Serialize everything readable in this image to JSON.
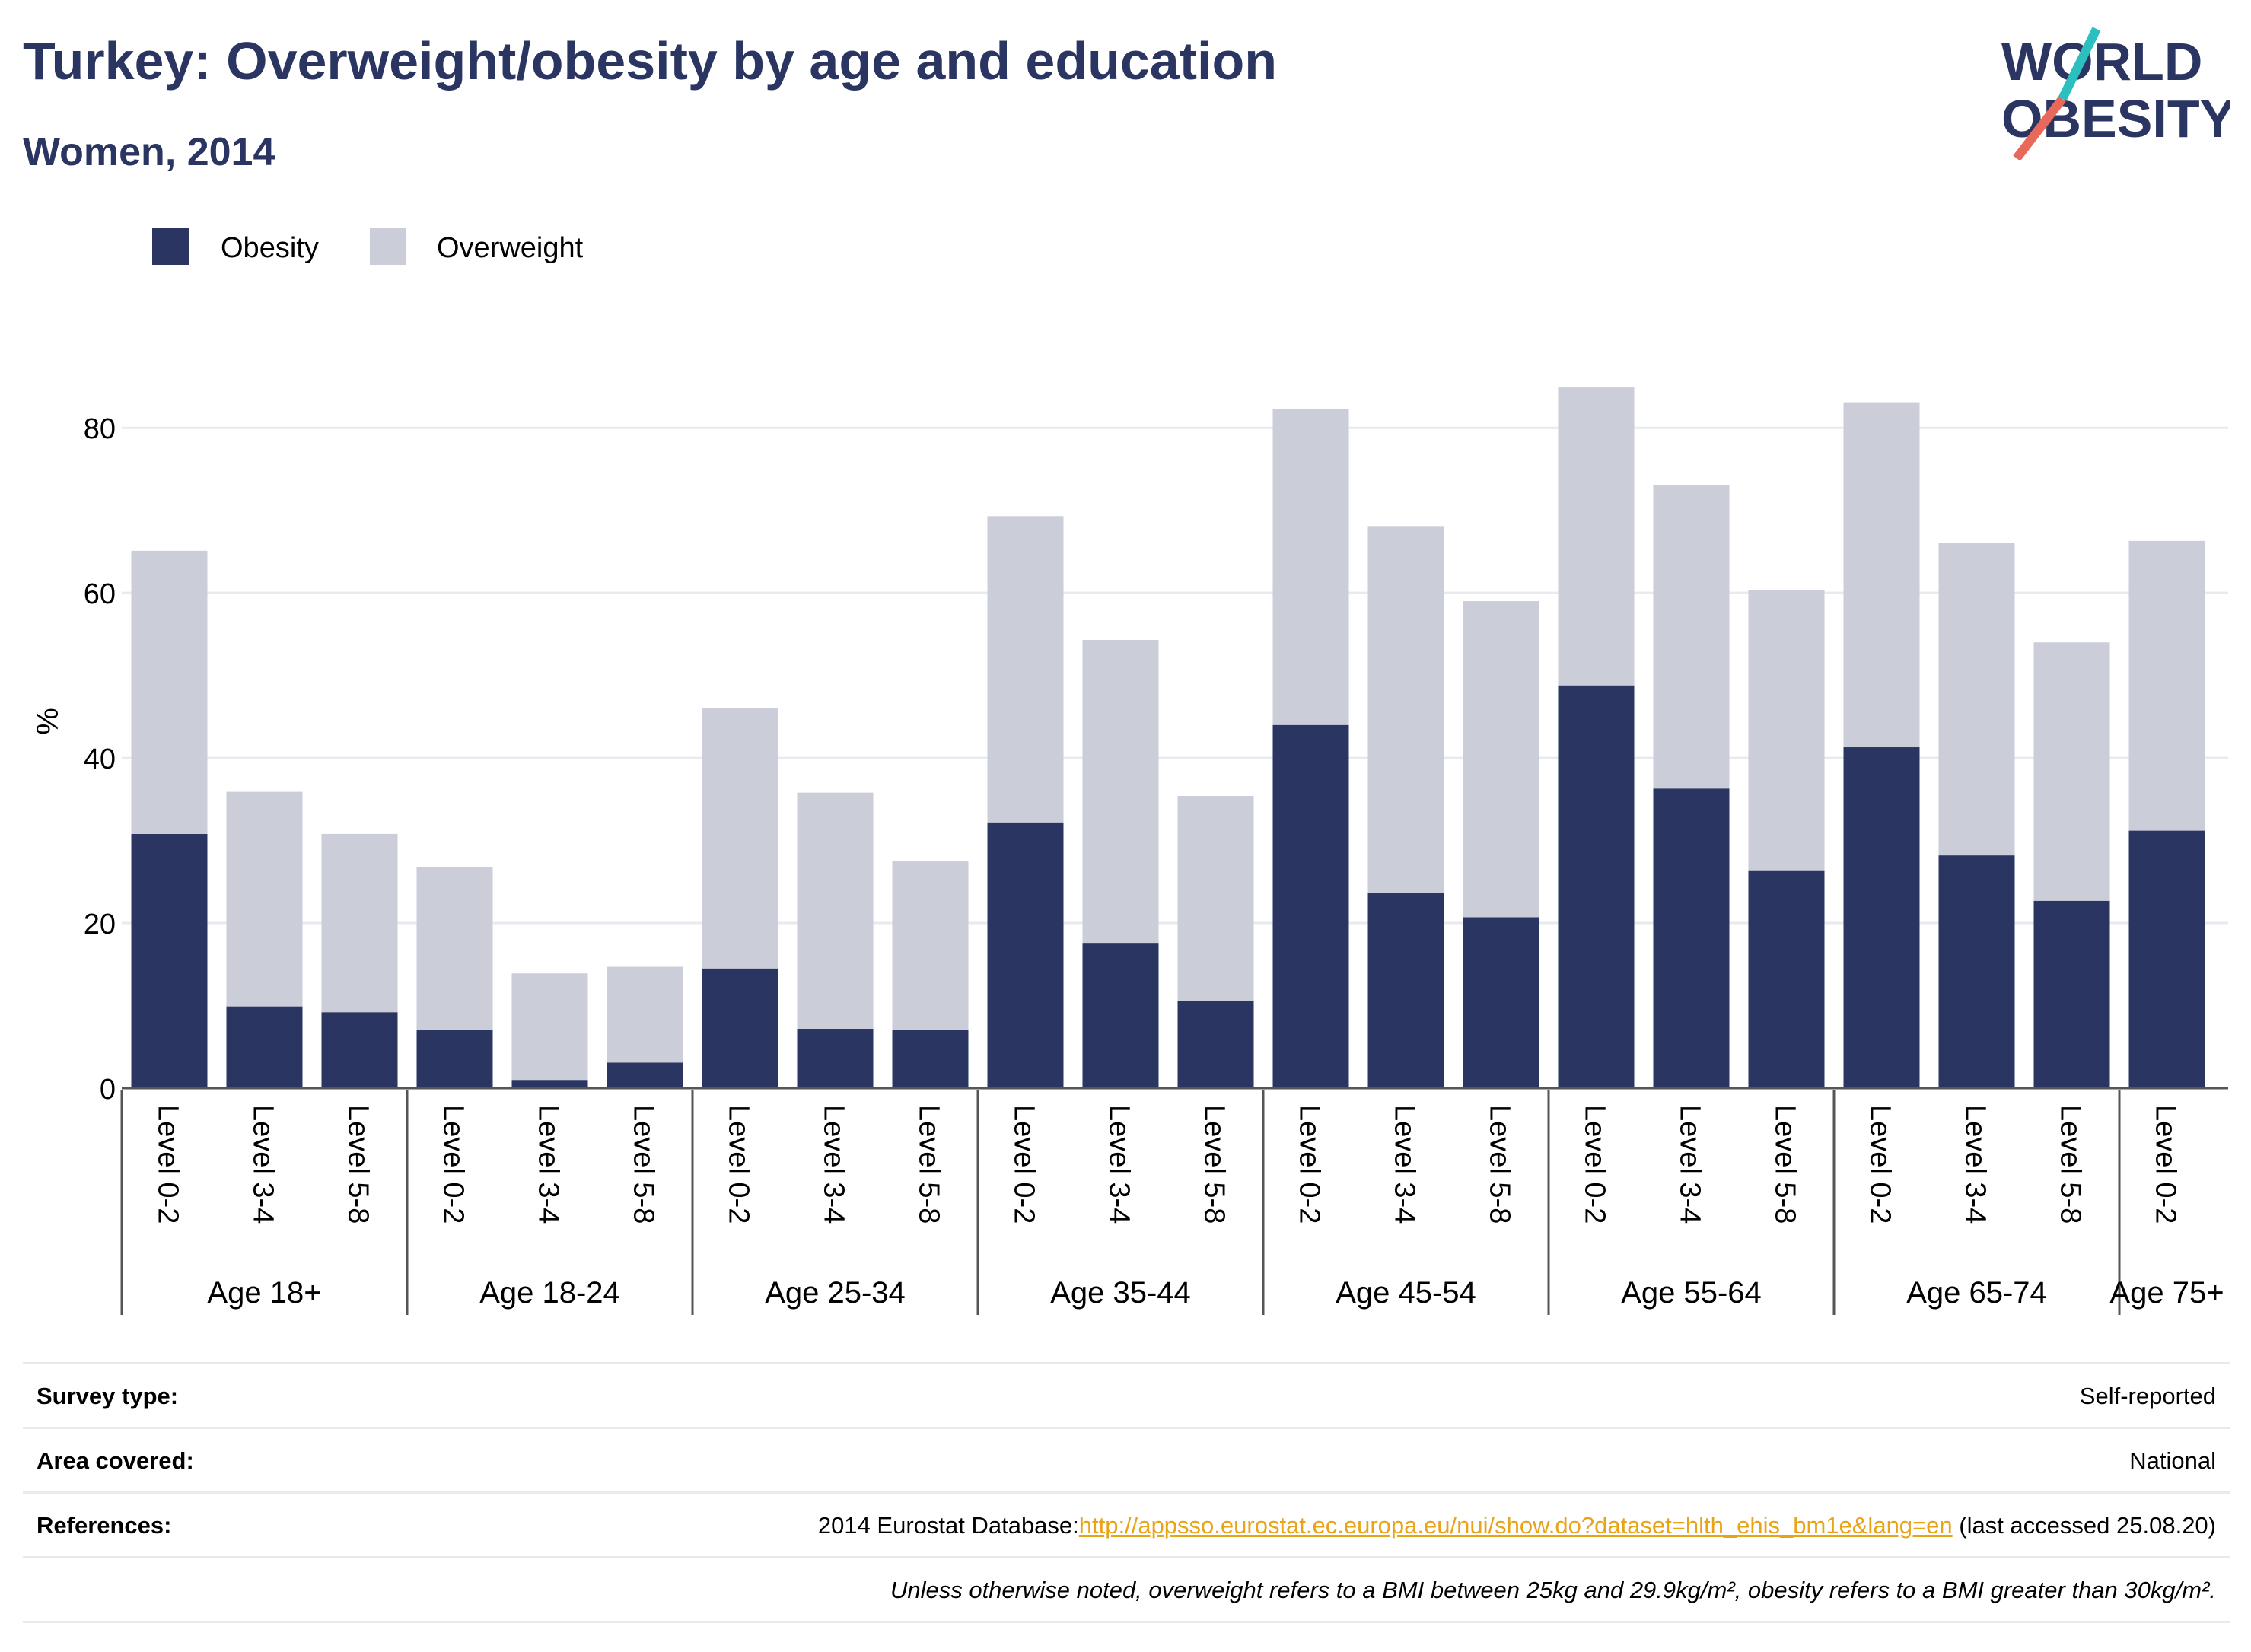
{
  "header": {
    "title": "Turkey: Overweight/obesity by age and education",
    "subtitle": "Women, 2014"
  },
  "logo": {
    "line1": "WORLD",
    "line2": "OBESITY"
  },
  "colors": {
    "obesity": "#2a3561",
    "overweight": "#cbcdd9",
    "title": "#2a3561",
    "link": "#e8a317",
    "grid": "#e8eaf0"
  },
  "chart_data": {
    "type": "bar",
    "stacked": true,
    "ylabel": "%",
    "ylim": [
      0,
      85
    ],
    "yticks": [
      0,
      20,
      40,
      60,
      80
    ],
    "grid": true,
    "legend_position": "top-left",
    "legend": [
      "Obesity",
      "Overweight"
    ],
    "groups": [
      {
        "label": "Age 18+",
        "categories": [
          "Level 0-2",
          "Level 3-4",
          "Level 5-8"
        ]
      },
      {
        "label": "Age 18-24",
        "categories": [
          "Level 0-2",
          "Level 3-4",
          "Level 5-8"
        ]
      },
      {
        "label": "Age 25-34",
        "categories": [
          "Level 0-2",
          "Level 3-4",
          "Level 5-8"
        ]
      },
      {
        "label": "Age 35-44",
        "categories": [
          "Level 0-2",
          "Level 3-4",
          "Level 5-8"
        ]
      },
      {
        "label": "Age 45-54",
        "categories": [
          "Level 0-2",
          "Level 3-4",
          "Level 5-8"
        ]
      },
      {
        "label": "Age 55-64",
        "categories": [
          "Level 0-2",
          "Level 3-4",
          "Level 5-8"
        ]
      },
      {
        "label": "Age 65-74",
        "categories": [
          "Level 0-2",
          "Level 3-4",
          "Level 5-8"
        ]
      },
      {
        "label": "Age 75+",
        "categories": [
          "Level 0-2"
        ]
      }
    ],
    "series": [
      {
        "name": "Obesity",
        "values": [
          30.8,
          9.9,
          9.2,
          7.1,
          1.0,
          3.1,
          14.5,
          7.2,
          7.1,
          32.2,
          17.6,
          10.6,
          44.0,
          23.7,
          20.7,
          48.8,
          36.3,
          26.4,
          41.3,
          28.2,
          22.7,
          31.2
        ]
      },
      {
        "name": "Overweight",
        "values": [
          34.3,
          26.0,
          21.6,
          19.7,
          12.9,
          11.6,
          31.5,
          28.6,
          20.4,
          37.1,
          36.7,
          24.8,
          38.3,
          44.4,
          38.3,
          36.1,
          36.8,
          33.9,
          41.8,
          37.9,
          31.3,
          35.1
        ]
      }
    ]
  },
  "footer": {
    "survey_type_label": "Survey type:",
    "survey_type_value": "Self-reported",
    "area_label": "Area covered:",
    "area_value": "National",
    "references_label": "References:",
    "references_prefix": "2014 Eurostat Database:",
    "references_link": "http://appsso.eurostat.ec.europa.eu/nui/show.do?dataset=hlth_ehis_bm1e&lang=en",
    "references_suffix": " (last accessed 25.08.20)",
    "note": "Unless otherwise noted, overweight refers to a BMI between 25kg and 29.9kg/m², obesity refers to a BMI greater than 30kg/m²."
  }
}
